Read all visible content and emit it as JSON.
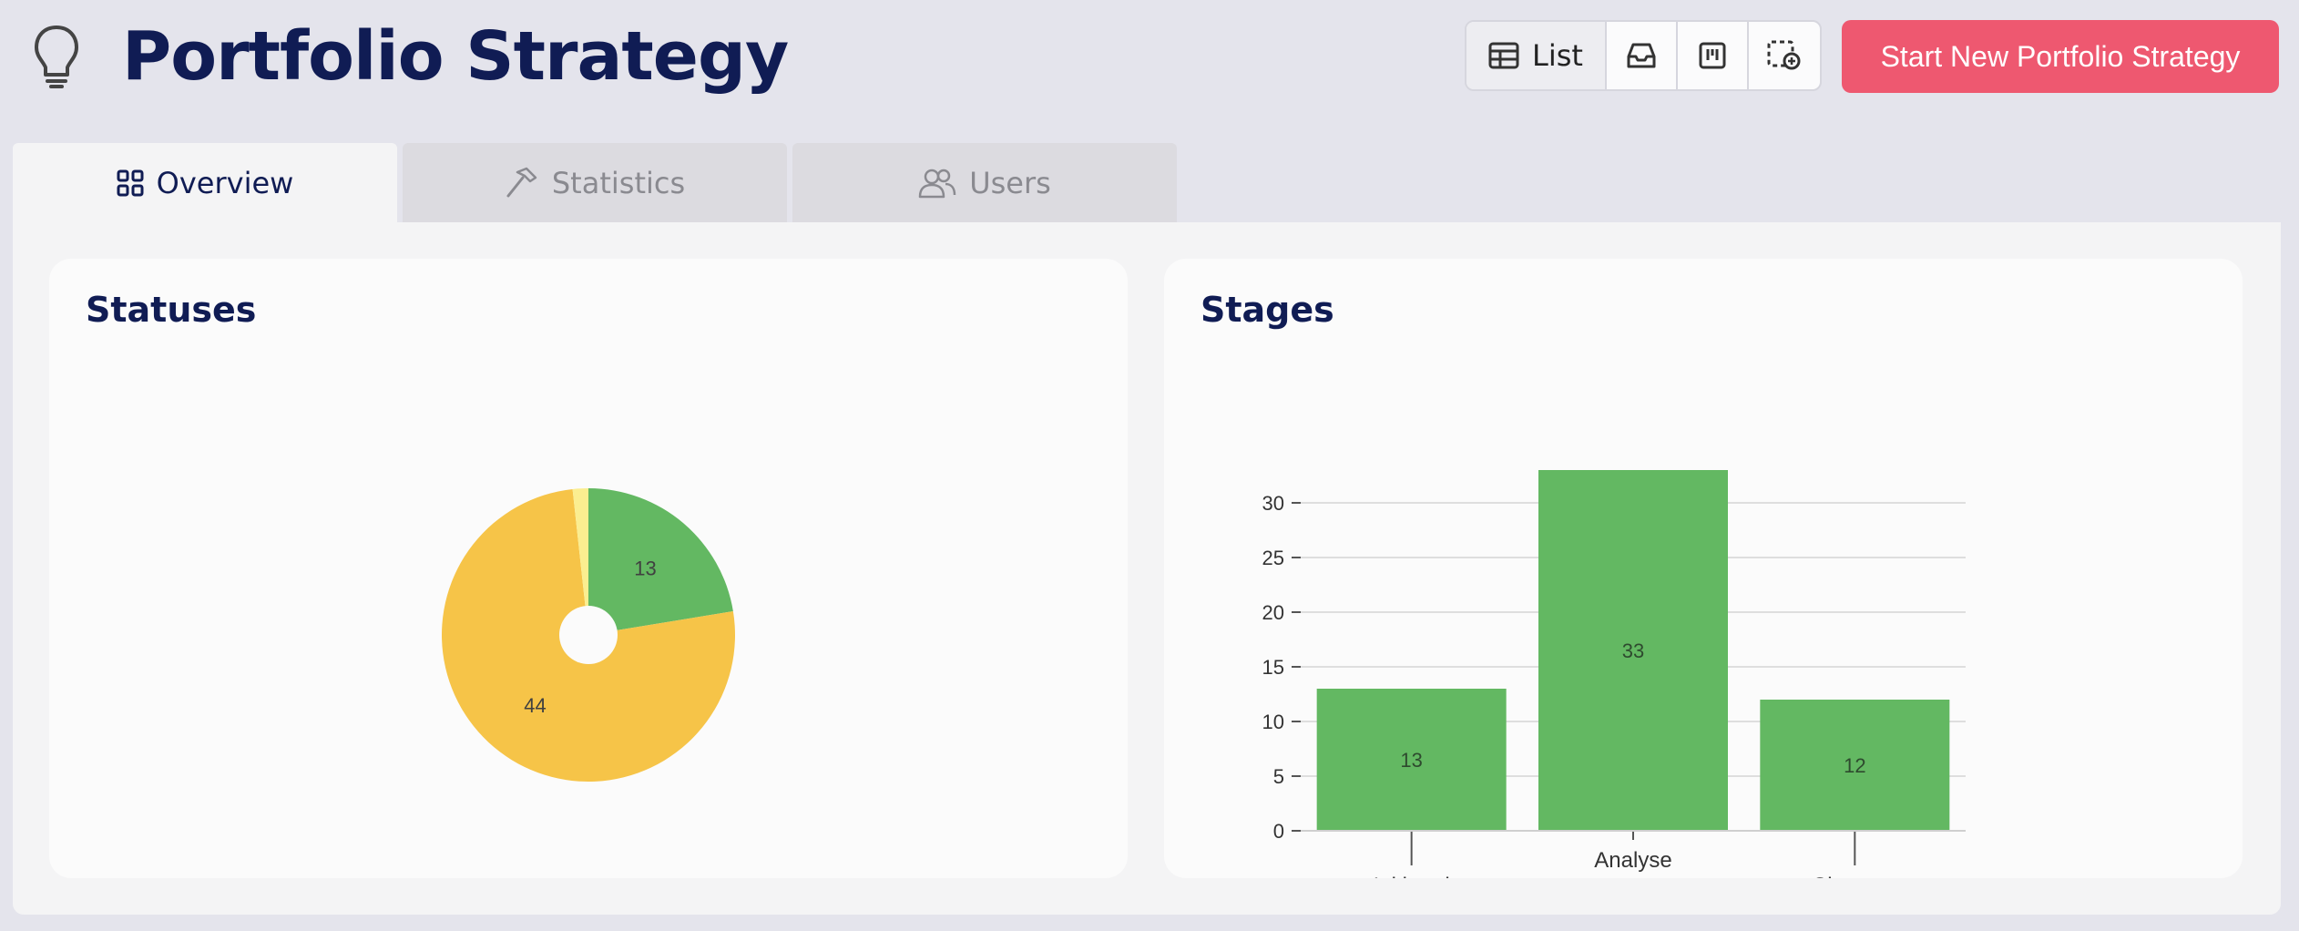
{
  "header": {
    "title": "Portfolio Strategy",
    "icon": "lightbulb-icon"
  },
  "toolbar": {
    "list_label": "List",
    "view_icons": [
      "table-icon",
      "inbox-icon",
      "kanban-icon",
      "add-frame-icon"
    ],
    "cta_label": "Start New Portfolio Strategy",
    "cta_color": "#ee5870"
  },
  "tabs": [
    {
      "label": "Overview",
      "icon": "grid-icon",
      "active": true
    },
    {
      "label": "Statistics",
      "icon": "hammer-icon",
      "active": false
    },
    {
      "label": "Users",
      "icon": "users-icon",
      "active": false
    }
  ],
  "cards": {
    "statuses_title": "Statuses",
    "stages_title": "Stages"
  },
  "chart_data": [
    {
      "type": "pie",
      "title": "Statuses",
      "slices": [
        {
          "value": 13,
          "color": "#63b862",
          "label": "13"
        },
        {
          "value": 44,
          "color": "#f6c448",
          "label": "44"
        },
        {
          "value": 1,
          "color": "#fbee90",
          "label": ""
        }
      ],
      "donut_hole": true
    },
    {
      "type": "bar",
      "title": "Stages",
      "categories": [
        "Initiated",
        "Analyse",
        "Closeout"
      ],
      "values": [
        13,
        33,
        12
      ],
      "ylim": [
        0,
        33
      ],
      "yticks": [
        0,
        5,
        10,
        15,
        20,
        25,
        30
      ],
      "grid": true,
      "bar_color": "#63b862"
    }
  ]
}
